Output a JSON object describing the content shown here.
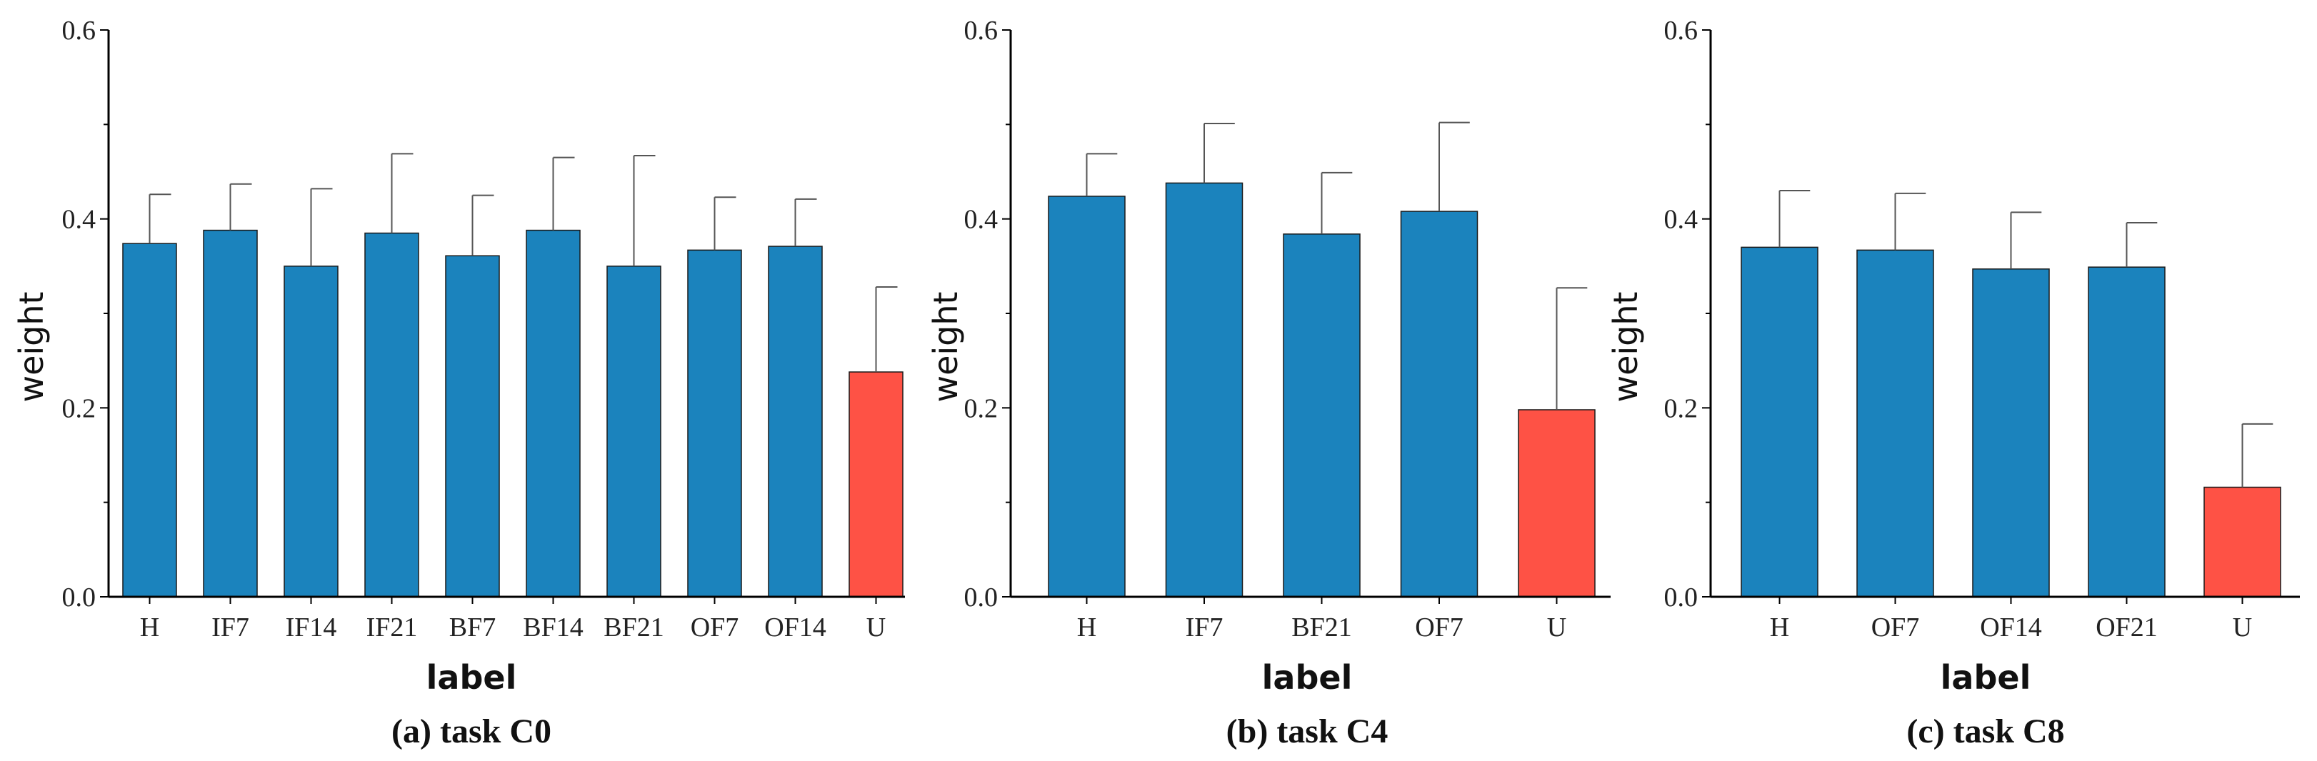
{
  "colors": {
    "normal": "#1b83bd",
    "highlight": "#fe5245",
    "axis": "#000000",
    "error": "#555555"
  },
  "chart_data": [
    {
      "type": "bar",
      "caption": "(a) task C0",
      "xlabel": "label",
      "ylabel": "weight",
      "ylim": [
        0,
        0.6
      ],
      "yticks": [
        "0.0",
        "0.2",
        "0.4",
        "0.6"
      ],
      "categories": [
        "H",
        "IF7",
        "IF14",
        "IF21",
        "BF7",
        "BF14",
        "BF21",
        "OF7",
        "OF14",
        "U"
      ],
      "values": [
        0.374,
        0.388,
        0.35,
        0.385,
        0.361,
        0.388,
        0.35,
        0.367,
        0.371,
        0.238
      ],
      "errors": [
        0.052,
        0.049,
        0.082,
        0.084,
        0.064,
        0.077,
        0.117,
        0.056,
        0.05,
        0.09
      ],
      "highlight": [
        "U"
      ]
    },
    {
      "type": "bar",
      "caption": "(b) task C4",
      "xlabel": "label",
      "ylabel": "weight",
      "ylim": [
        0,
        0.6
      ],
      "yticks": [
        "0.0",
        "0.2",
        "0.4",
        "0.6"
      ],
      "categories": [
        "H",
        "IF7",
        "BF21",
        "OF7",
        "U"
      ],
      "values": [
        0.424,
        0.438,
        0.384,
        0.408,
        0.198
      ],
      "errors": [
        0.045,
        0.063,
        0.065,
        0.094,
        0.129
      ],
      "highlight": [
        "U"
      ]
    },
    {
      "type": "bar",
      "caption": "(c) task C8",
      "xlabel": "label",
      "ylabel": "weight",
      "ylim": [
        0,
        0.6
      ],
      "yticks": [
        "0.0",
        "0.2",
        "0.4",
        "0.6"
      ],
      "categories": [
        "H",
        "OF7",
        "OF14",
        "OF21",
        "U"
      ],
      "values": [
        0.37,
        0.367,
        0.347,
        0.349,
        0.116
      ],
      "errors": [
        0.06,
        0.06,
        0.06,
        0.047,
        0.067
      ],
      "highlight": [
        "U"
      ]
    }
  ]
}
